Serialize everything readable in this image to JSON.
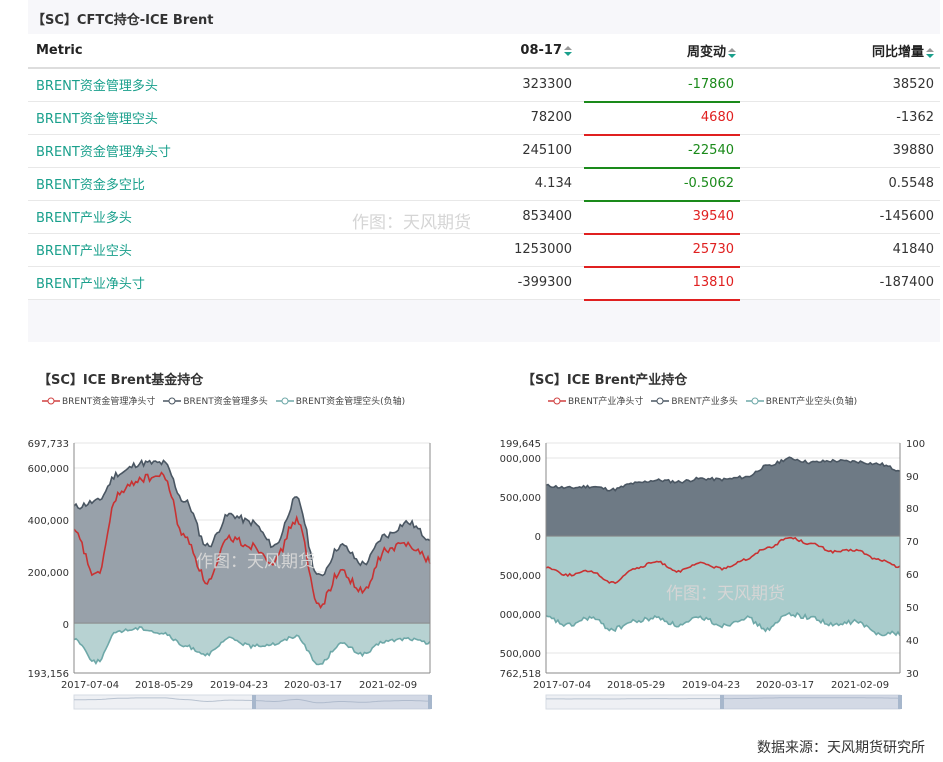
{
  "top": {
    "title": "【SC】CFTC持仓-ICE Brent",
    "headers": {
      "metric": "Metric",
      "date": "08-17",
      "chg": "周变动",
      "yoy": "同比增量"
    },
    "rows": [
      {
        "metric": "BRENT资金管理多头",
        "value": "323300",
        "chg": "-17860",
        "yoy": "38520",
        "dir": "down"
      },
      {
        "metric": "BRENT资金管理空头",
        "value": "78200",
        "chg": "4680",
        "yoy": "-1362",
        "dir": "up"
      },
      {
        "metric": "BRENT资金管理净头寸",
        "value": "245100",
        "chg": "-22540",
        "yoy": "39880",
        "dir": "down"
      },
      {
        "metric": "BRENT资金多空比",
        "value": "4.134",
        "chg": "-0.5062",
        "yoy": "0.5548",
        "dir": "down"
      },
      {
        "metric": "BRENT产业多头",
        "value": "853400",
        "chg": "39540",
        "yoy": "-145600",
        "dir": "up"
      },
      {
        "metric": "BRENT产业空头",
        "value": "1253000",
        "chg": "25730",
        "yoy": "41840",
        "dir": "up"
      },
      {
        "metric": "BRENT产业净头寸",
        "value": "-399300",
        "chg": "13810",
        "yoy": "-187400",
        "dir": "up"
      }
    ],
    "watermark": "作图：天风期货"
  },
  "colors": {
    "up": "#e02020",
    "down": "#1a8a1a",
    "teal": "#1aa08c",
    "fund_long": "#4a5662",
    "net": "#d04040",
    "short": "#6ea8a8"
  },
  "charts": {
    "left": {
      "title": "【SC】ICE Brent基金持仓",
      "legend": [
        "BRENT资金管理净头寸",
        "BRENT资金管理多头",
        "BRENT资金管理空头(负轴)"
      ],
      "yticks": [
        "697,733",
        "600,000",
        "400,000",
        "200,000",
        "0",
        "193,156"
      ],
      "xticks": [
        "2017-07-04",
        "2018-05-29",
        "2019-04-23",
        "2020-03-17",
        "2021-02-09"
      ],
      "watermark": "作图：天风期货"
    },
    "right": {
      "title": "【SC】ICE Brent产业持仓",
      "legend": [
        "BRENT产业净头寸",
        "BRENT产业多头",
        "BRENT产业空头(负轴)"
      ],
      "yticks_left": [
        "199,645",
        "000,000",
        "500,000",
        "0",
        "500,000",
        "000,000",
        "500,000",
        "762,518"
      ],
      "yticks_right": [
        "100",
        "90",
        "80",
        "70",
        "60",
        "50",
        "40",
        "30"
      ],
      "xticks": [
        "2017-07-04",
        "2018-05-29",
        "2019-04-23",
        "2020-03-17",
        "2021-02-09"
      ],
      "watermark": "作图：天风期货"
    }
  },
  "chart_data": [
    {
      "type": "area",
      "title": "【SC】ICE Brent基金持仓",
      "x": [
        "2017-07",
        "2017-10",
        "2018-01",
        "2018-04",
        "2018-07",
        "2018-10",
        "2019-01",
        "2019-04",
        "2019-07",
        "2019-10",
        "2020-01",
        "2020-04",
        "2020-07",
        "2020-10",
        "2021-01",
        "2021-04",
        "2021-08"
      ],
      "ylim": [
        -193156,
        697733
      ],
      "series": [
        {
          "name": "BRENT资金管理多头",
          "values": [
            450000,
            470000,
            580000,
            620000,
            620000,
            470000,
            300000,
            420000,
            390000,
            300000,
            480000,
            180000,
            300000,
            230000,
            340000,
            390000,
            330000
          ]
        },
        {
          "name": "BRENT资金管理净头寸",
          "values": [
            350000,
            180000,
            500000,
            560000,
            570000,
            330000,
            160000,
            330000,
            300000,
            240000,
            400000,
            70000,
            200000,
            120000,
            280000,
            310000,
            245100
          ]
        },
        {
          "name": "BRENT资金管理空头(负轴)",
          "values": [
            -60000,
            -150000,
            -30000,
            -20000,
            -40000,
            -90000,
            -120000,
            -60000,
            -90000,
            -80000,
            -50000,
            -160000,
            -80000,
            -120000,
            -70000,
            -60000,
            -78200
          ]
        }
      ]
    },
    {
      "type": "area",
      "title": "【SC】ICE Brent产业持仓",
      "x": [
        "2017-07",
        "2017-10",
        "2018-01",
        "2018-04",
        "2018-07",
        "2018-10",
        "2019-01",
        "2019-04",
        "2019-07",
        "2019-10",
        "2020-01",
        "2020-04",
        "2020-07",
        "2020-10",
        "2021-01",
        "2021-04",
        "2021-08"
      ],
      "series": [
        {
          "name": "BRENT产业多头",
          "values": [
            650000,
            620000,
            640000,
            600000,
            680000,
            720000,
            700000,
            740000,
            730000,
            760000,
            900000,
            1000000,
            950000,
            970000,
            960000,
            930000,
            853400
          ]
        },
        {
          "name": "BRENT产业空头(负轴)",
          "values": [
            -1050000,
            -1150000,
            -1050000,
            -1200000,
            -1100000,
            -1050000,
            -1150000,
            -1050000,
            -1150000,
            -1050000,
            -1200000,
            -1000000,
            -1050000,
            -1150000,
            -1100000,
            -1250000,
            -1253000
          ]
        },
        {
          "name": "BRENT产业净头寸",
          "values": [
            -400000,
            -500000,
            -450000,
            -600000,
            -420000,
            -330000,
            -450000,
            -350000,
            -420000,
            -300000,
            -150000,
            -20000,
            -100000,
            -200000,
            -180000,
            -300000,
            -399300
          ]
        }
      ]
    }
  ],
  "source": "数据来源：天风期货研究所"
}
